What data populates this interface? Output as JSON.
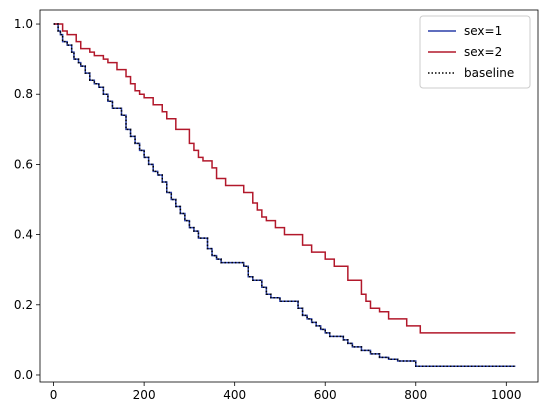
{
  "chart_data": {
    "type": "line",
    "step": true,
    "title": "",
    "xlabel": "",
    "ylabel": "",
    "xlim": [
      -30,
      1070
    ],
    "ylim": [
      -0.02,
      1.04
    ],
    "xticks": [
      0,
      200,
      400,
      600,
      800,
      1000
    ],
    "yticks": [
      0.0,
      0.2,
      0.4,
      0.6,
      0.8,
      1.0
    ],
    "grid": false,
    "legend_position": "top-right",
    "series": [
      {
        "name": "sex=1",
        "color": "#2a3fa8",
        "style": "solid",
        "x": [
          0,
          10,
          15,
          20,
          30,
          40,
          45,
          55,
          60,
          70,
          80,
          90,
          100,
          110,
          120,
          130,
          150,
          160,
          170,
          180,
          190,
          200,
          210,
          220,
          230,
          240,
          250,
          260,
          270,
          280,
          290,
          300,
          310,
          320,
          340,
          350,
          360,
          370,
          420,
          430,
          440,
          460,
          470,
          480,
          500,
          540,
          550,
          560,
          570,
          580,
          590,
          600,
          610,
          640,
          650,
          660,
          680,
          700,
          720,
          740,
          760,
          800,
          1020
        ],
        "y": [
          1.0,
          0.98,
          0.97,
          0.95,
          0.94,
          0.92,
          0.9,
          0.89,
          0.88,
          0.86,
          0.84,
          0.83,
          0.82,
          0.8,
          0.78,
          0.76,
          0.74,
          0.7,
          0.68,
          0.66,
          0.64,
          0.62,
          0.6,
          0.58,
          0.57,
          0.55,
          0.52,
          0.5,
          0.48,
          0.46,
          0.44,
          0.42,
          0.41,
          0.39,
          0.36,
          0.34,
          0.33,
          0.32,
          0.31,
          0.28,
          0.27,
          0.25,
          0.23,
          0.22,
          0.21,
          0.19,
          0.17,
          0.16,
          0.15,
          0.14,
          0.13,
          0.12,
          0.11,
          0.1,
          0.09,
          0.08,
          0.07,
          0.06,
          0.05,
          0.045,
          0.04,
          0.025,
          0.025
        ]
      },
      {
        "name": "sex=2",
        "color": "#b2182b",
        "style": "solid",
        "x": [
          0,
          20,
          30,
          50,
          60,
          80,
          90,
          110,
          120,
          140,
          160,
          170,
          180,
          190,
          200,
          220,
          240,
          250,
          270,
          300,
          310,
          320,
          330,
          350,
          360,
          380,
          420,
          440,
          450,
          460,
          470,
          490,
          510,
          550,
          570,
          600,
          620,
          650,
          680,
          690,
          700,
          720,
          740,
          780,
          810,
          1020
        ],
        "y": [
          1.0,
          0.98,
          0.97,
          0.95,
          0.93,
          0.92,
          0.91,
          0.9,
          0.89,
          0.87,
          0.85,
          0.83,
          0.81,
          0.8,
          0.79,
          0.77,
          0.75,
          0.73,
          0.7,
          0.66,
          0.64,
          0.62,
          0.61,
          0.59,
          0.56,
          0.54,
          0.52,
          0.49,
          0.47,
          0.45,
          0.44,
          0.42,
          0.4,
          0.37,
          0.35,
          0.33,
          0.31,
          0.27,
          0.23,
          0.21,
          0.19,
          0.18,
          0.16,
          0.14,
          0.12,
          0.12
        ]
      },
      {
        "name": "baseline",
        "color": "#000000",
        "style": "dotted",
        "x": [
          0,
          10,
          15,
          20,
          30,
          40,
          45,
          55,
          60,
          70,
          80,
          90,
          100,
          110,
          120,
          130,
          150,
          160,
          170,
          180,
          190,
          200,
          210,
          220,
          230,
          240,
          250,
          260,
          270,
          280,
          290,
          300,
          310,
          320,
          340,
          350,
          360,
          370,
          420,
          430,
          440,
          460,
          470,
          480,
          500,
          540,
          550,
          560,
          570,
          580,
          590,
          600,
          610,
          640,
          650,
          660,
          680,
          700,
          720,
          740,
          760,
          800,
          1020
        ],
        "y": [
          1.0,
          0.98,
          0.97,
          0.95,
          0.94,
          0.92,
          0.9,
          0.89,
          0.88,
          0.86,
          0.84,
          0.83,
          0.82,
          0.8,
          0.78,
          0.76,
          0.74,
          0.7,
          0.68,
          0.66,
          0.64,
          0.62,
          0.6,
          0.58,
          0.57,
          0.55,
          0.52,
          0.5,
          0.48,
          0.46,
          0.44,
          0.42,
          0.41,
          0.39,
          0.36,
          0.34,
          0.33,
          0.32,
          0.31,
          0.28,
          0.27,
          0.25,
          0.23,
          0.22,
          0.21,
          0.19,
          0.17,
          0.16,
          0.15,
          0.14,
          0.13,
          0.12,
          0.11,
          0.1,
          0.09,
          0.08,
          0.07,
          0.06,
          0.05,
          0.045,
          0.04,
          0.025,
          0.025
        ]
      }
    ]
  }
}
